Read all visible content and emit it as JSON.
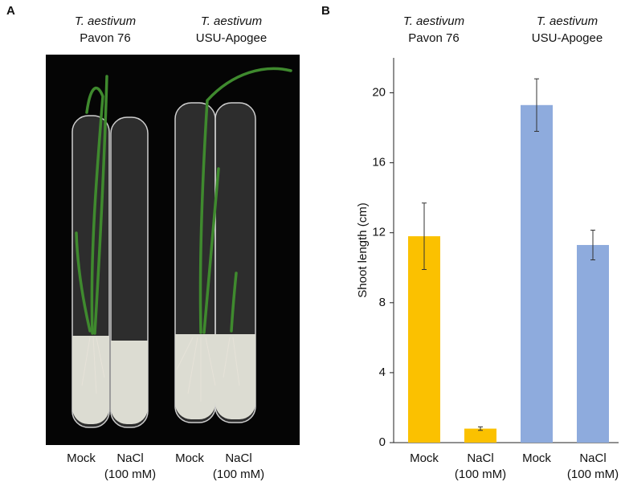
{
  "panel_a": {
    "panel_label": "A",
    "group_labels": [
      {
        "species": "T. aestivum",
        "cultivar": "Pavon 76"
      },
      {
        "species": "T. aestivum",
        "cultivar": "USU-Apogee"
      }
    ],
    "tube_labels": [
      "Mock",
      "NaCl\n(100 mM)",
      "Mock",
      "NaCl\n(100 mM)"
    ]
  },
  "chart_data": {
    "type": "bar",
    "panel_label": "B",
    "group_labels": [
      {
        "species": "T. aestivum",
        "cultivar": "Pavon 76"
      },
      {
        "species": "T. aestivum",
        "cultivar": "USU-Apogee"
      }
    ],
    "ylabel": "Shoot length (cm)",
    "categories": [
      "Mock",
      "NaCl\n(100 mM)",
      "Mock",
      "NaCl\n(100 mM)"
    ],
    "values": [
      11.8,
      0.8,
      19.3,
      11.3
    ],
    "errors": [
      1.9,
      0.1,
      1.5,
      0.85
    ],
    "colors": [
      "#fbc100",
      "#fbc100",
      "#8eabdd",
      "#8eabdd"
    ],
    "ylim": [
      0,
      22
    ],
    "yticks": [
      0,
      4,
      8,
      12,
      16,
      20
    ]
  }
}
